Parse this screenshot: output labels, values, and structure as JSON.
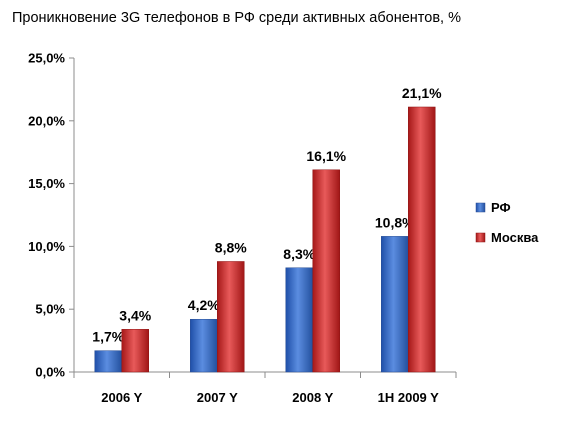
{
  "chart_data": {
    "type": "bar",
    "title": "Проникновение 3G телефонов в РФ среди активных абонентов, %",
    "categories": [
      "2006 Y",
      "2007 Y",
      "2008 Y",
      "1H 2009 Y"
    ],
    "series": [
      {
        "name": "РФ",
        "values": [
          1.7,
          4.2,
          8.3,
          10.8
        ],
        "labels": [
          "1,7%",
          "4,2%",
          "8,3%",
          "10,8%"
        ],
        "color": "#3366cc"
      },
      {
        "name": "Москва",
        "values": [
          3.4,
          8.8,
          16.1,
          21.1
        ],
        "labels": [
          "3,4%",
          "8,8%",
          "16,1%",
          "21,1%"
        ],
        "color": "#cc2222"
      }
    ],
    "ylim": [
      0,
      25
    ],
    "yticks": [
      0,
      5,
      10,
      15,
      20,
      25
    ],
    "ytick_labels": [
      "0,0%",
      "5,0%",
      "10,0%",
      "15,0%",
      "20,0%",
      "25,0%"
    ],
    "xlabel": "",
    "ylabel": "",
    "grid": false,
    "legend": "right"
  }
}
